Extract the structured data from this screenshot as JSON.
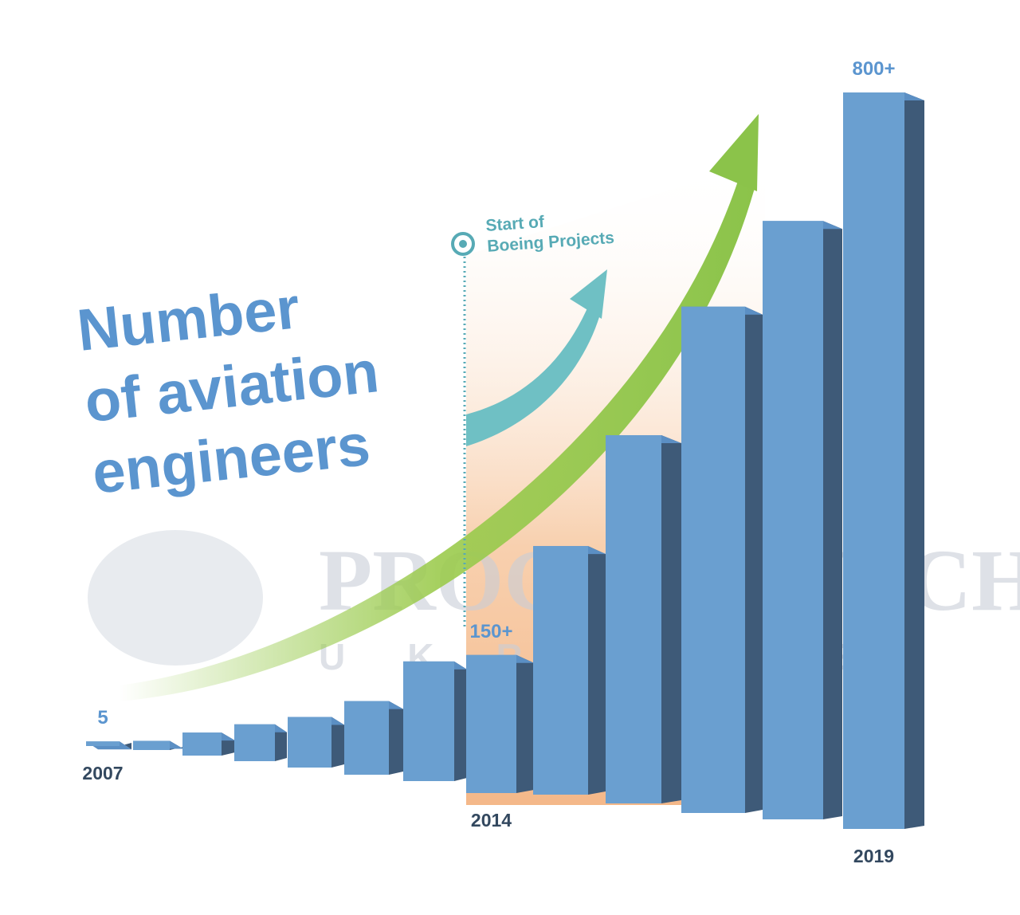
{
  "chart_data": {
    "type": "bar3d",
    "title": [
      "Number",
      "of aviation",
      "engineers"
    ],
    "annotation": [
      "Start of",
      "Boeing Projects"
    ],
    "watermark": {
      "name": "PROGRESSTECH",
      "sub": "UKRAINE"
    },
    "categories": [
      "2007",
      null,
      null,
      null,
      null,
      null,
      null,
      "2014",
      null,
      null,
      null,
      null,
      "2019"
    ],
    "values": [
      5,
      10,
      25,
      40,
      55,
      80,
      130,
      150,
      270,
      400,
      550,
      650,
      800
    ],
    "value_labels": [
      "5",
      null,
      null,
      null,
      null,
      null,
      null,
      "150+",
      null,
      null,
      null,
      null,
      "800+"
    ],
    "color": "#6a9fd0",
    "side_color": "#3e5a78",
    "top_color": "#5b8fc4"
  }
}
